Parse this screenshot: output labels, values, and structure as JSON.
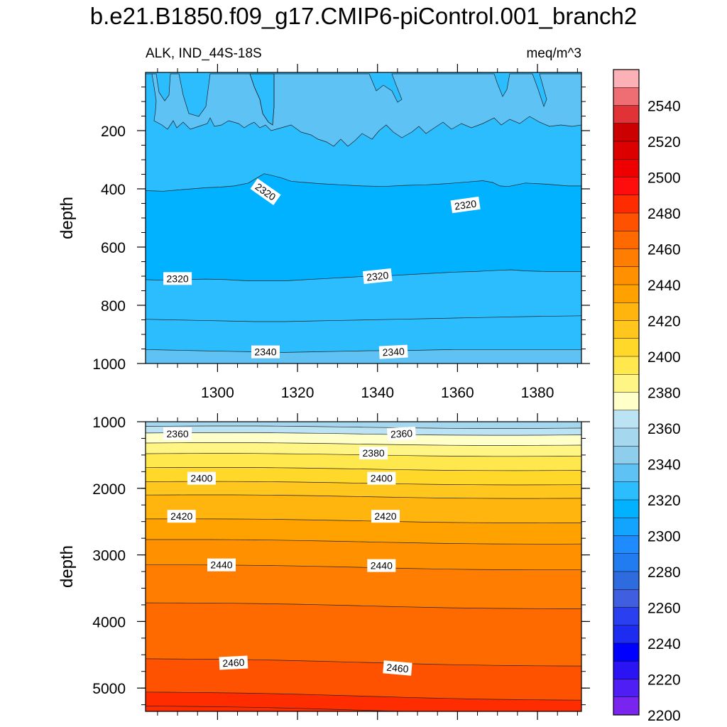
{
  "title": "b.e21.B1850.f09_g17.CMIP6-piControl.001_branch2",
  "chart_data": [
    {
      "type": "heatmap",
      "panel": "upper",
      "left_label": "ALK, IND_44S-18S",
      "right_label": "meq/m^3",
      "ylabel": "depth",
      "xlabel": "",
      "xlim": [
        1282,
        1391
      ],
      "ylim": [
        1000,
        0
      ],
      "x_ticks": [
        1300,
        1320,
        1340,
        1360,
        1380
      ],
      "y_ticks": [
        200,
        400,
        600,
        800,
        1000
      ],
      "contour_labels": [
        {
          "text": "2320",
          "x": 1312,
          "depth": 410
        },
        {
          "text": "2320",
          "x": 1362,
          "depth": 455
        },
        {
          "text": "2320",
          "x": 1290,
          "depth": 708
        },
        {
          "text": "2320",
          "x": 1340,
          "depth": 700
        },
        {
          "text": "2340",
          "x": 1312,
          "depth": 960
        },
        {
          "text": "2340",
          "x": 1344,
          "depth": 960
        }
      ]
    },
    {
      "type": "heatmap",
      "panel": "lower",
      "ylabel": "depth",
      "xlabel": "",
      "xlim": [
        1282,
        1391
      ],
      "ylim": [
        5350,
        1000
      ],
      "y_ticks": [
        1000,
        2000,
        3000,
        4000,
        5000
      ],
      "contour_labels": [
        {
          "text": "2360",
          "x": 1290,
          "depth": 1180
        },
        {
          "text": "2360",
          "x": 1346,
          "depth": 1180
        },
        {
          "text": "2380",
          "x": 1339,
          "depth": 1470
        },
        {
          "text": "2400",
          "x": 1296,
          "depth": 1850
        },
        {
          "text": "2400",
          "x": 1341,
          "depth": 1850
        },
        {
          "text": "2420",
          "x": 1291,
          "depth": 2420
        },
        {
          "text": "2420",
          "x": 1342,
          "depth": 2420
        },
        {
          "text": "2440",
          "x": 1301,
          "depth": 3150
        },
        {
          "text": "2440",
          "x": 1341,
          "depth": 3160
        },
        {
          "text": "2460",
          "x": 1304,
          "depth": 4620
        },
        {
          "text": "2460",
          "x": 1345,
          "depth": 4700
        }
      ]
    },
    {
      "type": "colorbar",
      "tick_labels": [
        "2540",
        "2520",
        "2500",
        "2480",
        "2460",
        "2440",
        "2420",
        "2400",
        "2380",
        "2360",
        "2340",
        "2320",
        "2300",
        "2280",
        "2260",
        "2240",
        "2220",
        "2200"
      ],
      "colors": [
        "#fbb1b6",
        "#ee6e73",
        "#e03237",
        "#cc0000",
        "#dd0000",
        "#ee0000",
        "#ff0c0c",
        "#ff2c00",
        "#ff5200",
        "#ff6a00",
        "#ff7d00",
        "#ff9000",
        "#ffa200",
        "#ffb50d",
        "#ffc61e",
        "#ffd82a",
        "#ffe84e",
        "#fff585",
        "#ffffc9",
        "#bce3f3",
        "#a5d8ef",
        "#8fcdec",
        "#5ec2f5",
        "#2cbdff",
        "#00b2ff",
        "#12a4ff",
        "#1e8bff",
        "#207cf0",
        "#2e6bdf",
        "#3f5ee0",
        "#2a3ff0",
        "#1e2cf2",
        "#0000ff",
        "#2a14f4",
        "#4e1ef4",
        "#7a24f0"
      ]
    }
  ]
}
